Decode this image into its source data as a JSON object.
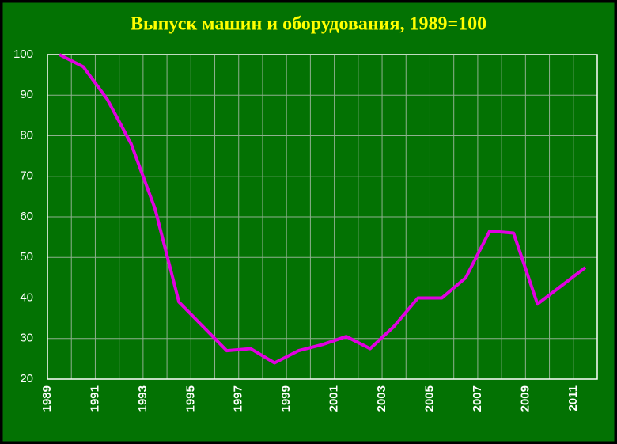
{
  "chart_data": {
    "type": "line",
    "title": "Выпуск машин и оборудования, 1989=100",
    "categories": [
      "1989",
      null,
      "1991",
      null,
      "1993",
      null,
      "1995",
      null,
      "1997",
      null,
      "1999",
      null,
      "2001",
      null,
      "2003",
      null,
      "2005",
      null,
      "2007",
      null,
      "2009",
      null,
      "2011"
    ],
    "series": [
      {
        "name": "Выпуск",
        "color": "#e000e0",
        "values": [
          100,
          97,
          89,
          78,
          62,
          39,
          33,
          27,
          27.5,
          24,
          27,
          28.5,
          30.5,
          27.5,
          33,
          40,
          40,
          45,
          56.5,
          56,
          38.5,
          43,
          47.5
        ]
      }
    ],
    "ylim": [
      20,
      100
    ],
    "yticks": [
      20,
      30,
      40,
      50,
      60,
      70,
      80,
      90,
      100
    ],
    "grid": true
  }
}
